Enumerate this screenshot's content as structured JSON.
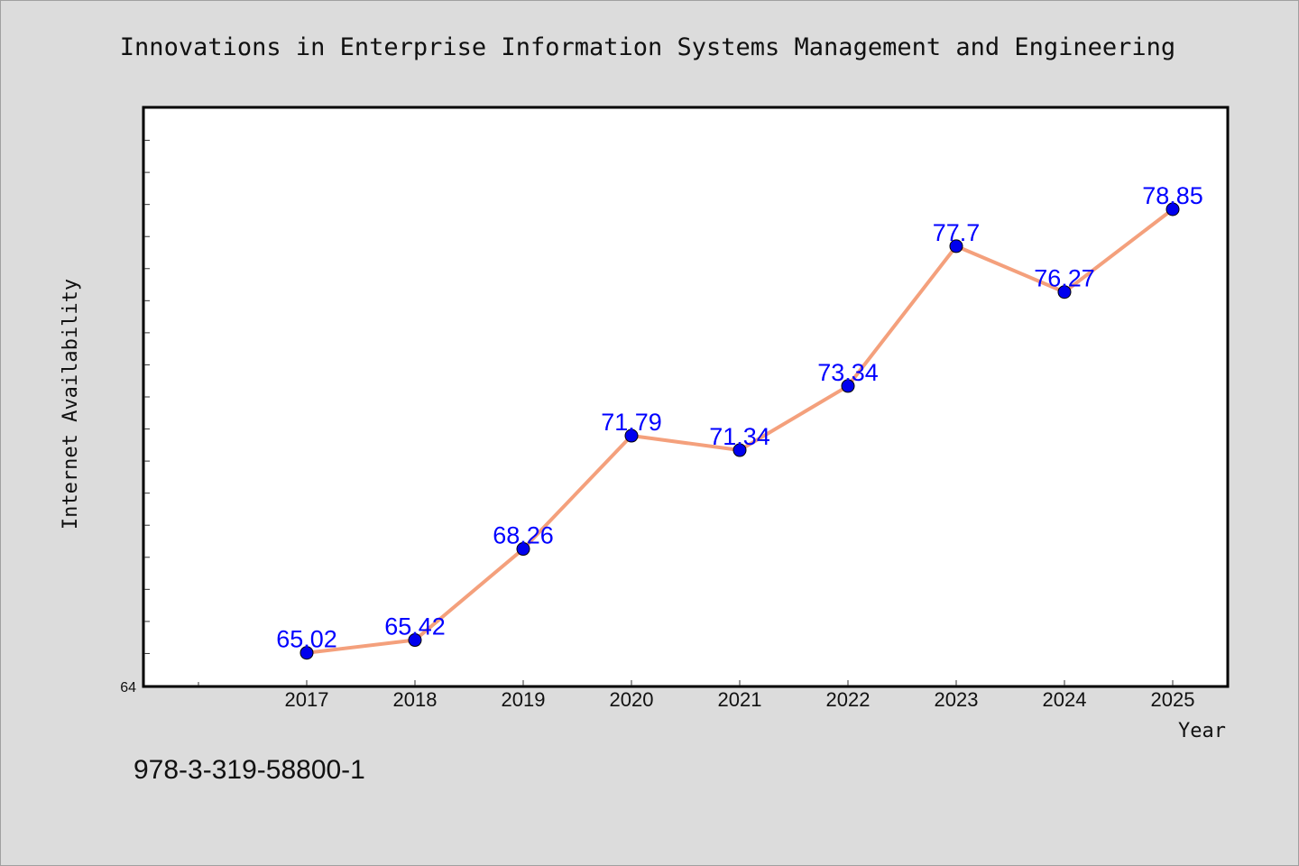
{
  "chart_data": {
    "type": "line",
    "title": "Innovations in Enterprise Information Systems Management and Engineering",
    "xlabel": "Year",
    "ylabel": "Internet Availability",
    "categories": [
      "2017",
      "2018",
      "2019",
      "2020",
      "2021",
      "2022",
      "2023",
      "2024",
      "2025"
    ],
    "series": [
      {
        "values": [
          65.02,
          65.42,
          68.26,
          71.79,
          71.34,
          73.34,
          77.7,
          76.27,
          78.85
        ],
        "value_labels": [
          "65.02",
          "65.42",
          "68.26",
          "71.79",
          "71.34",
          "73.34",
          "77.7",
          "76.27",
          "78.85"
        ],
        "line_color": "#f4a07c",
        "marker_color": "#0000ee"
      }
    ],
    "ylim": [
      64,
      82
    ],
    "y_tick_labels": [
      "64"
    ],
    "grid": false,
    "legend": "none",
    "colors": {
      "background": "#dcdcdc",
      "plot_background": "#ffffff",
      "line": "#f4a07c",
      "marker": "#0000ee",
      "data_label": "#0000ff"
    }
  },
  "footer": {
    "isbn": "978-3-319-58800-1"
  }
}
